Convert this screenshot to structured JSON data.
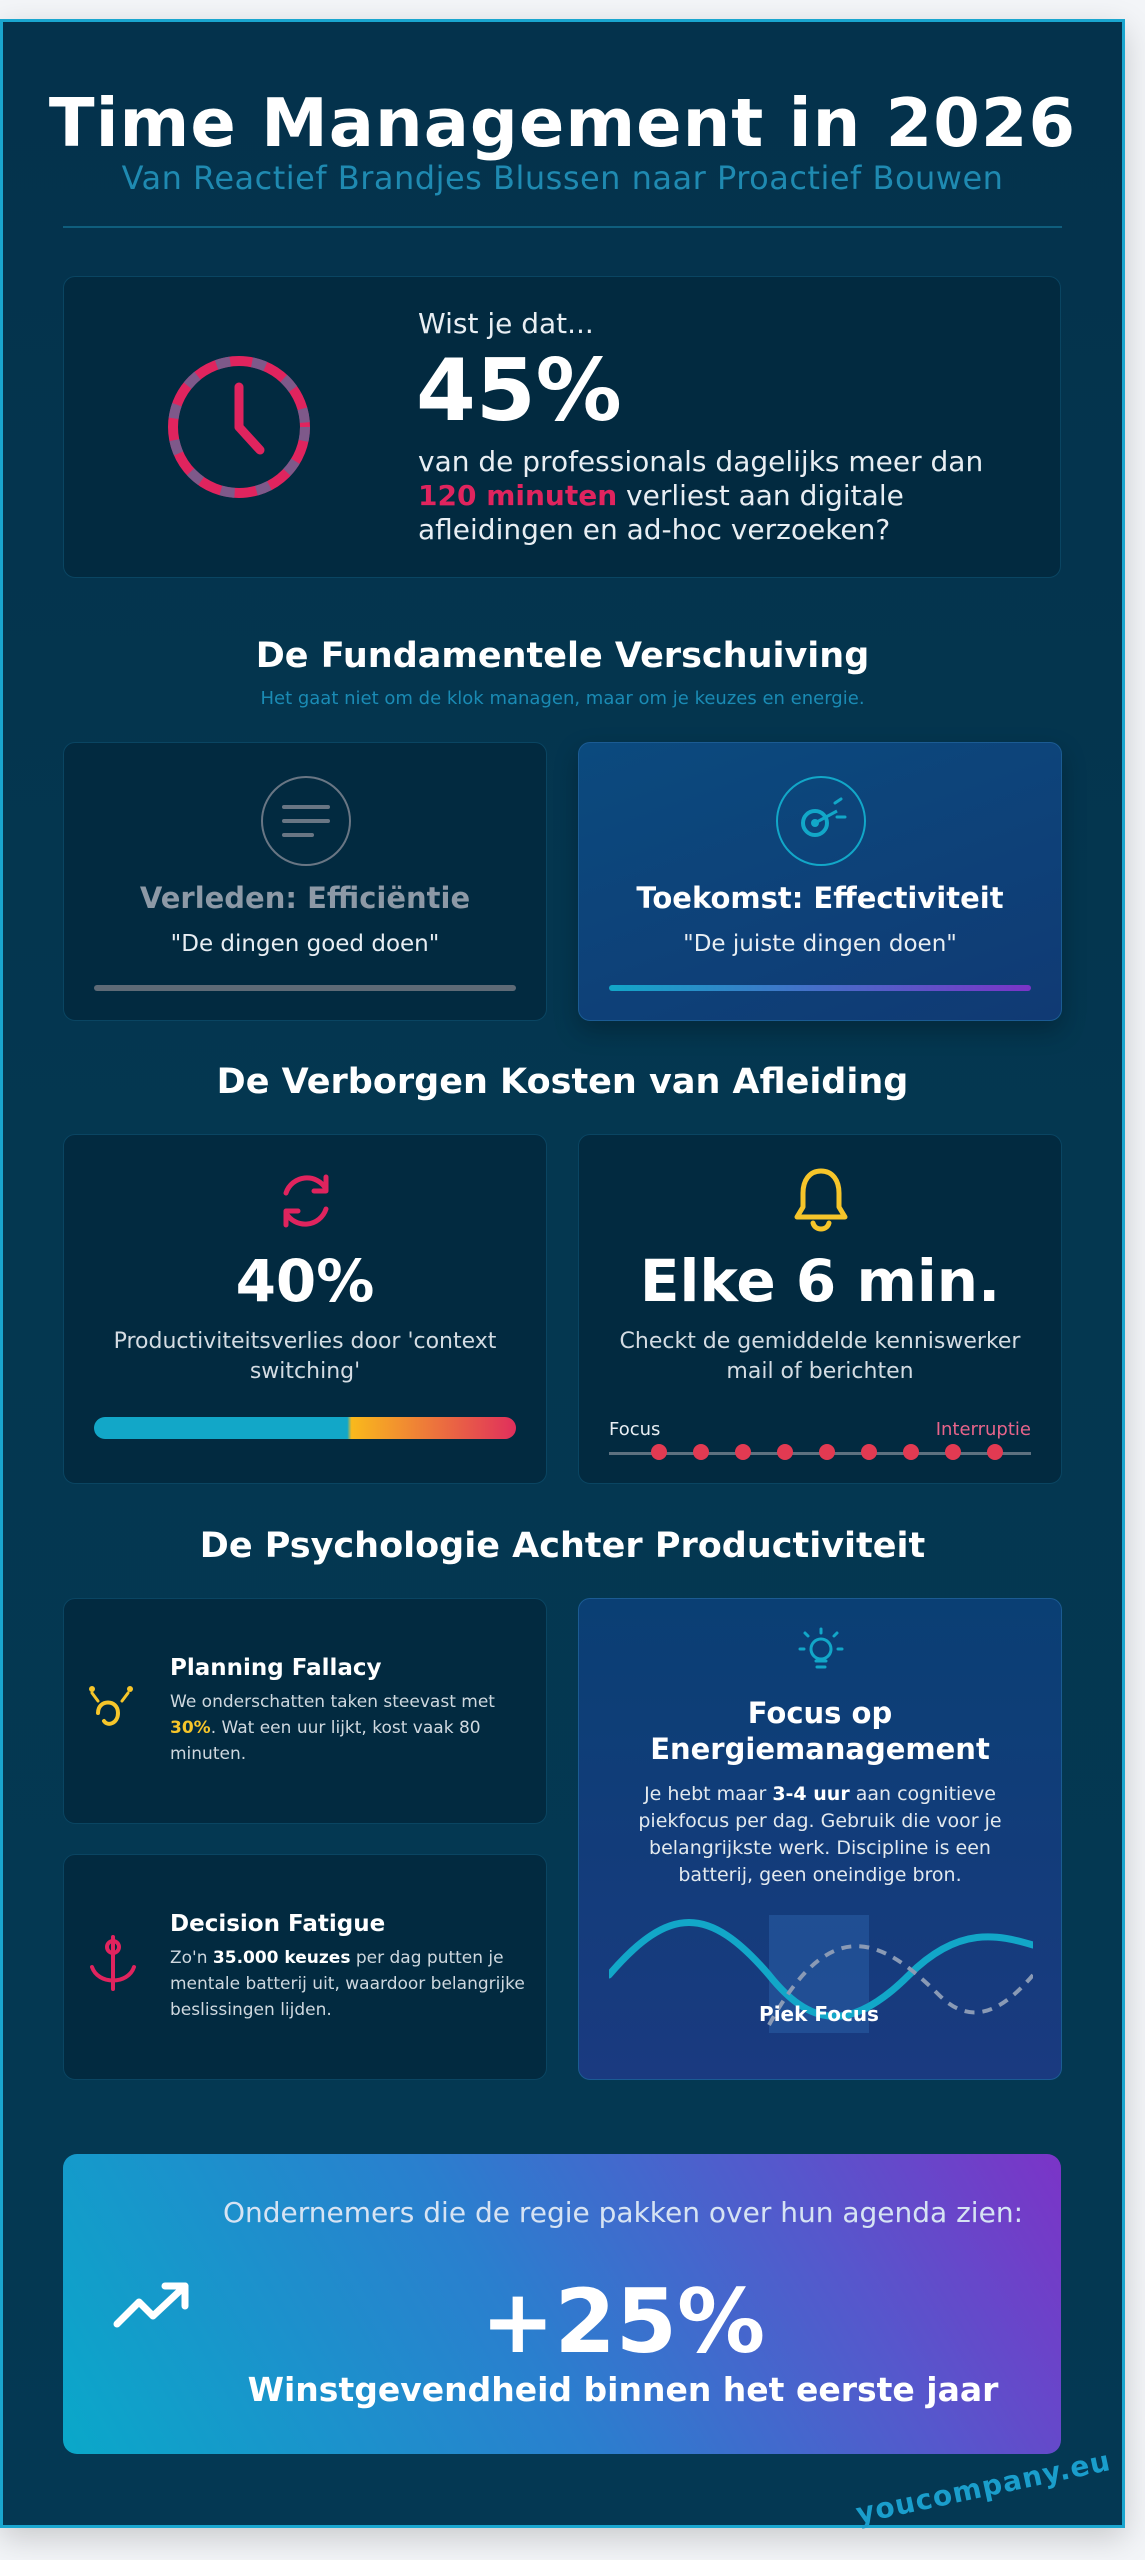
{
  "header": {
    "title": "Time Management in 2026",
    "subtitle": "Van Reactief Brandjes Blussen naar Proactief Bouwen"
  },
  "stat": {
    "icon": "clock-icon",
    "lead": "Wist je dat...",
    "big": "45%",
    "text_1": "van de professionals dagelijks meer dan",
    "highlight": "120 minuten",
    "text_2": " verliest aan digitale afleidingen en ad-hoc verzoeken?"
  },
  "shift": {
    "title": "De Fundamentele Verschuiving",
    "subtitle": "Het gaat niet om de klok managen, maar om je keuzes en energie.",
    "past": {
      "icon": "list-icon",
      "heading": "Verleden: Efficiëntie",
      "quote": "\"De dingen goed doen\""
    },
    "future": {
      "icon": "target-icon",
      "heading": "Toekomst: Effectiviteit",
      "quote": "\"De juiste dingen doen\""
    }
  },
  "costs": {
    "title": "De Verborgen Kosten van Afleiding",
    "switching": {
      "icon": "refresh-icon",
      "big": "40%",
      "text": "Productiviteitsverlies door 'context switching'",
      "focus_share": 0.6
    },
    "checking": {
      "icon": "bell-icon",
      "big": "Elke 6 min.",
      "text": "Checkt de gemiddelde kenniswerker mail of berichten",
      "label_left": "Focus",
      "label_right": "Interruptie",
      "dot_count": 9
    }
  },
  "psychology": {
    "title": "De Psychologie Achter Productiviteit",
    "planning": {
      "icon": "juggling-icon",
      "heading": "Planning Fallacy",
      "text_1": "We onderschatten taken steevast met ",
      "highlight": "30%",
      "text_2": ". Wat een uur lijkt, kost vaak 80 minuten."
    },
    "decision": {
      "icon": "fork-icon",
      "heading": "Decision Fatigue",
      "text_1": "Zo'n ",
      "highlight": "35.000 keuzes",
      "text_2": " per dag putten je mentale batterij uit, waardoor belangrijke beslissingen lijden."
    },
    "focus": {
      "icon": "lightbulb-icon",
      "heading": "Focus op Energiemanagement",
      "text_1": "Je hebt maar ",
      "highlight": "3-4 uur",
      "text_2": " aan cognitieve piekfocus per dag. Gebruik die voor je belangrijkste werk. Discipline is een batterij, geen oneindige bron.",
      "wave_label": "Piek Focus"
    }
  },
  "banner": {
    "icon": "trend-up-icon",
    "lead": "Ondernemers die de regie pakken over hun agenda zien:",
    "big": "+25%",
    "sub": "Winstgevendheid binnen het eerste jaar"
  },
  "watermark": "youcompany.eu",
  "colors": {
    "accent_cyan": "#12a7c8",
    "accent_pink": "#e0245e",
    "accent_yellow": "#f6c52a",
    "accent_purple": "#7b34c7"
  }
}
